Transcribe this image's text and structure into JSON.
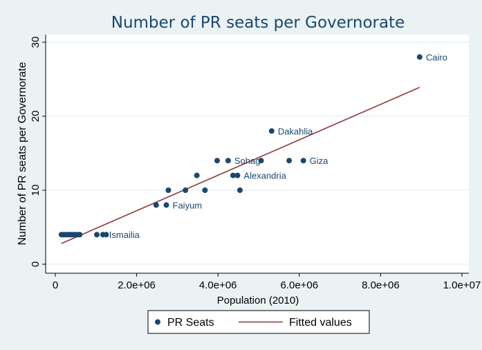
{
  "chart_data": {
    "type": "scatter",
    "title": "Number of PR seats per Governorate",
    "xlabel": "Population (2010)",
    "ylabel": "Number of PR seats per Governorate",
    "xlim": [
      0,
      10000000
    ],
    "ylim": [
      0,
      30
    ],
    "x_ticks": [
      {
        "value": 0,
        "label": "0"
      },
      {
        "value": 2000000,
        "label": "2.0e+06"
      },
      {
        "value": 4000000,
        "label": "4.0e+06"
      },
      {
        "value": 6000000,
        "label": "6.0e+06"
      },
      {
        "value": 8000000,
        "label": "8.0e+06"
      },
      {
        "value": 10000000,
        "label": "1.0e+07"
      }
    ],
    "y_ticks": [
      {
        "value": 0,
        "label": "0"
      },
      {
        "value": 10,
        "label": "10"
      },
      {
        "value": 20,
        "label": "20"
      },
      {
        "value": 30,
        "label": "30"
      }
    ],
    "grid": true,
    "legend_position": "bottom",
    "colors": {
      "points": "#1a476f",
      "fit": "#90353b",
      "text": "#1a476f",
      "plot_bg": "#ffffff",
      "outer_bg": "#eaf2f3",
      "grid": "#eaf2f3"
    },
    "series": [
      {
        "name": "PR Seats",
        "kind": "scatter",
        "points": [
          {
            "x": 150000,
            "y": 4
          },
          {
            "x": 200000,
            "y": 4
          },
          {
            "x": 250000,
            "y": 4
          },
          {
            "x": 300000,
            "y": 4
          },
          {
            "x": 350000,
            "y": 4
          },
          {
            "x": 400000,
            "y": 4
          },
          {
            "x": 450000,
            "y": 4
          },
          {
            "x": 500000,
            "y": 4
          },
          {
            "x": 550000,
            "y": 4
          },
          {
            "x": 600000,
            "y": 4
          },
          {
            "x": 1020000,
            "y": 4
          },
          {
            "x": 1170000,
            "y": 4,
            "label": "Ismailia"
          },
          {
            "x": 1250000,
            "y": 4
          },
          {
            "x": 2480000,
            "y": 8
          },
          {
            "x": 2730000,
            "y": 8,
            "label": "Faiyum"
          },
          {
            "x": 2780000,
            "y": 10
          },
          {
            "x": 3200000,
            "y": 10
          },
          {
            "x": 3480000,
            "y": 12
          },
          {
            "x": 3680000,
            "y": 10
          },
          {
            "x": 3980000,
            "y": 14
          },
          {
            "x": 4250000,
            "y": 14,
            "label": "Sohag"
          },
          {
            "x": 4370000,
            "y": 12
          },
          {
            "x": 4480000,
            "y": 12,
            "label": "Alexandria"
          },
          {
            "x": 4540000,
            "y": 10
          },
          {
            "x": 5060000,
            "y": 14
          },
          {
            "x": 5320000,
            "y": 18,
            "label": "Dakahlia"
          },
          {
            "x": 5750000,
            "y": 14
          },
          {
            "x": 6100000,
            "y": 14,
            "label": "Giza"
          },
          {
            "x": 8960000,
            "y": 28,
            "label": "Cairo"
          }
        ]
      },
      {
        "name": "Fitted values",
        "kind": "line",
        "points": [
          {
            "x": 150000,
            "y": 2.8
          },
          {
            "x": 8960000,
            "y": 23.9
          }
        ]
      }
    ]
  }
}
